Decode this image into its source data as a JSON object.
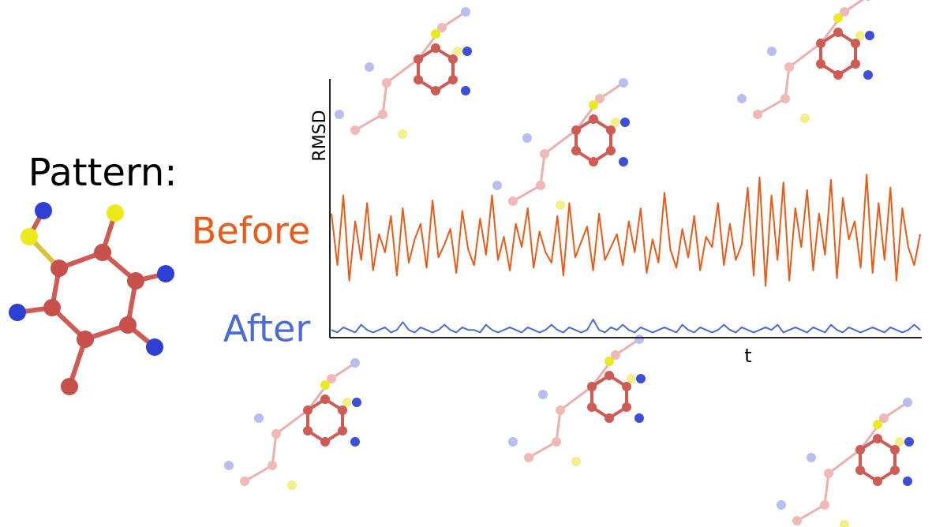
{
  "chart_data": {
    "type": "line",
    "pattern_label": "Pattern:",
    "y_label": "RMSD",
    "x_label": "t",
    "ylim": [
      0,
      100
    ],
    "series": [
      {
        "name": "Before",
        "color": "#ec5a17",
        "values": [
          48,
          28,
          55,
          22,
          45,
          30,
          52,
          26,
          40,
          33,
          47,
          24,
          50,
          29,
          38,
          44,
          27,
          53,
          31,
          36,
          42,
          25,
          49,
          34,
          28,
          46,
          32,
          55,
          30,
          39,
          26,
          44,
          35,
          50,
          27,
          41,
          33,
          29,
          47,
          24,
          52,
          31,
          37,
          43,
          26,
          48,
          30,
          35,
          40,
          28,
          45,
          33,
          50,
          25,
          38,
          29,
          56,
          34,
          27,
          42,
          31,
          47,
          26,
          39,
          35,
          52,
          28,
          44,
          30,
          36,
          58,
          24,
          62,
          20,
          55,
          30,
          60,
          22,
          50,
          35,
          57,
          26,
          48,
          32,
          61,
          23,
          54,
          38,
          45,
          27,
          63,
          25,
          52,
          30,
          58,
          22,
          50,
          35,
          28,
          40
        ]
      },
      {
        "name": "After",
        "color": "#4a6cd4",
        "values": [
          3,
          2,
          4,
          3,
          2,
          5,
          3,
          2,
          3,
          4,
          2,
          3,
          6,
          3,
          2,
          4,
          3,
          2,
          3,
          5,
          3,
          2,
          4,
          3,
          3,
          2,
          5,
          3,
          2,
          3,
          4,
          3,
          2,
          4,
          3,
          2,
          3,
          5,
          3,
          2,
          4,
          3,
          2,
          3,
          7,
          3,
          2,
          4,
          3,
          5,
          3,
          2,
          4,
          3,
          2,
          3,
          4,
          3,
          2,
          5,
          3,
          2,
          4,
          3,
          2,
          3,
          5,
          3,
          2,
          4,
          3,
          2,
          3,
          4,
          3,
          5,
          2,
          3,
          4,
          3,
          2,
          4,
          3,
          2,
          5,
          3,
          2,
          4,
          3,
          2,
          3,
          4,
          3,
          2,
          4,
          3,
          2,
          3,
          5,
          3
        ]
      }
    ]
  }
}
